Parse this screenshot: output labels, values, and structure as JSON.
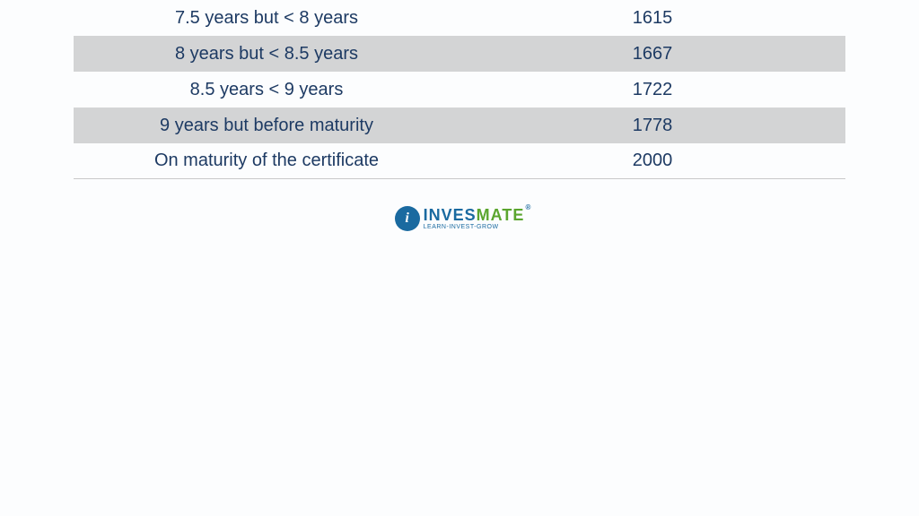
{
  "table": {
    "text_color": "#1d3a63",
    "stripe_color": "#d3d4d5",
    "plain_color": "transparent",
    "font_size": 20,
    "rows": [
      {
        "label": "7.5 years but < 8 years",
        "value": "1615",
        "striped": false
      },
      {
        "label": "8 years but < 8.5 years",
        "value": "1667",
        "striped": true
      },
      {
        "label": "8.5 years < 9 years",
        "value": "1722",
        "striped": false
      },
      {
        "label": "9 years but before maturity",
        "value": "1778",
        "striped": true
      },
      {
        "label": "On maturity of the certificate",
        "value": "2000",
        "striped": false
      }
    ]
  },
  "logo": {
    "part1": "INVES",
    "part2": "MATE",
    "reg": "®",
    "tagline": "LEARN-INVEST-GROW",
    "icon_letter": "i",
    "color_primary": "#1a6aa0",
    "color_accent": "#5aa52e"
  },
  "background_color": "#fcfdfe"
}
